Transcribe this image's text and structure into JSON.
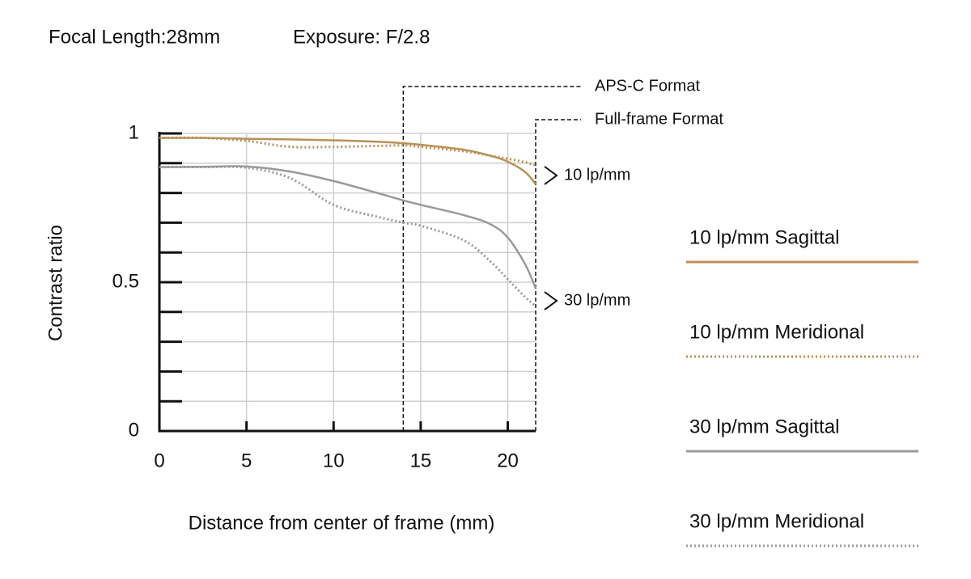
{
  "chart_data": {
    "type": "line",
    "title": "Focal Length:28mm",
    "subtitle": "Exposure: F/2.8",
    "x_label": "Distance from center of frame (mm)",
    "y_label": "Contrast ratio",
    "x": [
      0,
      2.5,
      5,
      7.5,
      10,
      12.5,
      14,
      15,
      17.5,
      19,
      20,
      21,
      21.6
    ],
    "series": [
      {
        "name": "10 lp/mm Sagittal",
        "color": "#b8915a",
        "dashed": false,
        "values": [
          0.985,
          0.985,
          0.982,
          0.98,
          0.977,
          0.972,
          0.967,
          0.962,
          0.945,
          0.925,
          0.905,
          0.87,
          0.83
        ]
      },
      {
        "name": "10 lp/mm Meridional",
        "color": "#b8915a",
        "dashed": true,
        "values": [
          0.985,
          0.985,
          0.975,
          0.955,
          0.955,
          0.958,
          0.96,
          0.955,
          0.94,
          0.925,
          0.915,
          0.903,
          0.893
        ]
      },
      {
        "name": "30 lp/mm Sagittal",
        "color": "#9a9a9a",
        "dashed": false,
        "values": [
          0.887,
          0.888,
          0.889,
          0.872,
          0.84,
          0.8,
          0.775,
          0.76,
          0.725,
          0.695,
          0.65,
          0.56,
          0.48
        ]
      },
      {
        "name": "30 lp/mm Meridional",
        "color": "#9a9a9a",
        "dashed": true,
        "values": [
          0.887,
          0.887,
          0.885,
          0.85,
          0.76,
          0.72,
          0.7,
          0.69,
          0.64,
          0.57,
          0.51,
          0.45,
          0.42
        ]
      }
    ],
    "xlim": [
      0,
      21.6
    ],
    "ylim": [
      0,
      1
    ],
    "xticks": [
      0,
      5,
      10,
      15,
      20
    ],
    "yticks": [
      0,
      0.5,
      1
    ],
    "yminor": [
      0.1,
      0.2,
      0.3,
      0.4,
      0.6,
      0.7,
      0.8,
      0.9
    ],
    "grid": true,
    "annotations": [
      {
        "text": "APS-C Format",
        "x": 14
      },
      {
        "text": "Full-frame Format",
        "x": 21.6
      }
    ],
    "group_labels": [
      "10 lp/mm",
      "30 lp/mm"
    ]
  }
}
